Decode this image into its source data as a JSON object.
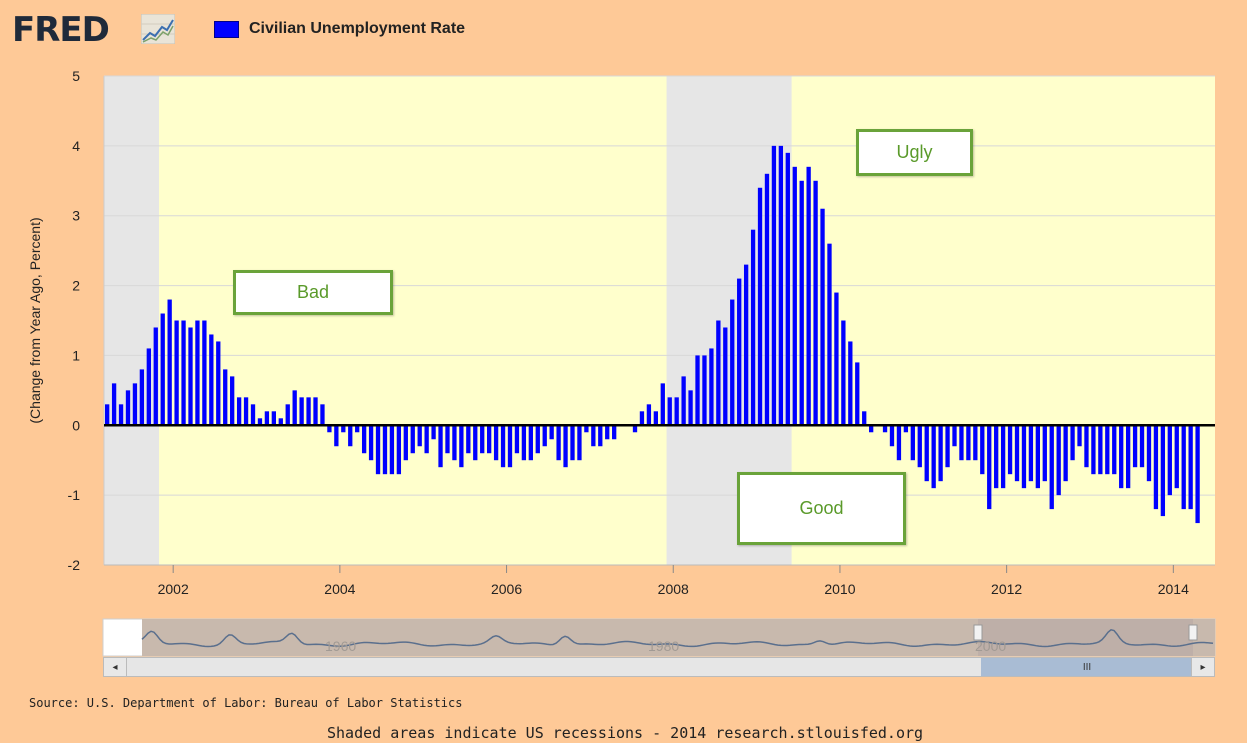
{
  "header": {
    "logo_text": "FRED",
    "logo_icon": "trend-line-icon",
    "legend_label": "Civilian Unemployment Rate",
    "legend_color": "#0000ff"
  },
  "callouts": {
    "bad": "Bad",
    "ugly": "Ugly",
    "good": "Good"
  },
  "navigator": {
    "labels": [
      "1960",
      "1980",
      "2000"
    ],
    "thumb_grip": "III",
    "left_arrow": "◂",
    "right_arrow": "▸"
  },
  "source_text": "Source: U.S. Department of Labor: Bureau of Labor Statistics",
  "footer_text": "Shaded areas indicate US recessions - 2014 research.stlouisfed.org",
  "colors": {
    "background": "#fec997",
    "plot_bg": "#ffffcc",
    "recession": "#e6e6e6",
    "bar": "#0000ff",
    "callout_border": "#6aa33a",
    "callout_text": "#5a9a2a"
  },
  "chart_data": {
    "type": "bar",
    "title": "Civilian Unemployment Rate",
    "ylabel": "(Change from Year Ago, Percent)",
    "xlabel": "",
    "ylim": [
      -2,
      5
    ],
    "yticks": [
      -2,
      -1,
      0,
      1,
      2,
      3,
      4,
      5
    ],
    "xlim": [
      2001.17,
      2014.5
    ],
    "xticks": [
      "2002",
      "2004",
      "2006",
      "2008",
      "2010",
      "2012",
      "2014"
    ],
    "grid": true,
    "legend": "top-left",
    "recessions": [
      [
        2001.17,
        2001.83
      ],
      [
        2007.92,
        2009.42
      ]
    ],
    "series": [
      {
        "name": "Civilian Unemployment Rate",
        "start": 2001.17,
        "frequency": "monthly",
        "values": [
          0.3,
          0.6,
          0.3,
          0.5,
          0.6,
          0.8,
          1.1,
          1.4,
          1.6,
          1.8,
          1.5,
          1.5,
          1.4,
          1.5,
          1.5,
          1.3,
          1.2,
          0.8,
          0.7,
          0.4,
          0.4,
          0.3,
          0.1,
          0.2,
          0.2,
          0.1,
          0.3,
          0.5,
          0.4,
          0.4,
          0.4,
          0.3,
          -0.1,
          -0.3,
          -0.1,
          -0.3,
          -0.1,
          -0.4,
          -0.5,
          -0.7,
          -0.7,
          -0.7,
          -0.7,
          -0.5,
          -0.4,
          -0.3,
          -0.4,
          -0.2,
          -0.6,
          -0.4,
          -0.5,
          -0.6,
          -0.4,
          -0.5,
          -0.4,
          -0.4,
          -0.5,
          -0.6,
          -0.6,
          -0.4,
          -0.5,
          -0.5,
          -0.4,
          -0.3,
          -0.2,
          -0.5,
          -0.6,
          -0.5,
          -0.5,
          -0.1,
          -0.3,
          -0.3,
          -0.2,
          -0.2,
          0.0,
          0.0,
          -0.1,
          0.2,
          0.3,
          0.2,
          0.6,
          0.4,
          0.4,
          0.7,
          0.5,
          1.0,
          1.0,
          1.1,
          1.5,
          1.4,
          1.8,
          2.1,
          2.3,
          2.8,
          3.4,
          3.6,
          4.0,
          4.0,
          3.9,
          3.7,
          3.5,
          3.7,
          3.5,
          3.1,
          2.6,
          1.9,
          1.5,
          1.2,
          0.9,
          0.2,
          -0.1,
          0.0,
          -0.1,
          -0.3,
          -0.5,
          -0.1,
          -0.5,
          -0.6,
          -0.8,
          -0.9,
          -0.8,
          -0.6,
          -0.3,
          -0.5,
          -0.5,
          -0.5,
          -0.7,
          -1.2,
          -0.9,
          -0.9,
          -0.7,
          -0.8,
          -0.9,
          -0.8,
          -0.9,
          -0.8,
          -1.2,
          -1.0,
          -0.8,
          -0.5,
          -0.3,
          -0.6,
          -0.7,
          -0.7,
          -0.7,
          -0.7,
          -0.9,
          -0.9,
          -0.6,
          -0.6,
          -0.8,
          -1.2,
          -1.3,
          -1.0,
          -0.9,
          -1.2,
          -1.2,
          -1.4
        ]
      }
    ]
  }
}
